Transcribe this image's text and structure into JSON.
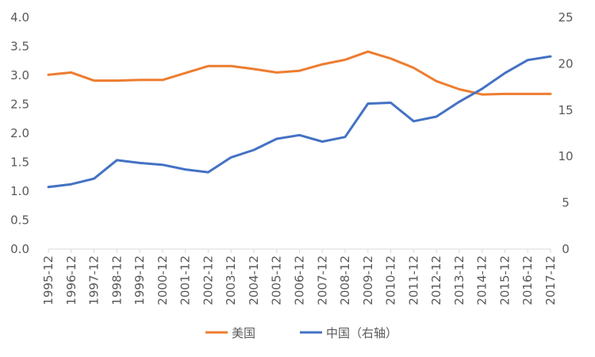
{
  "chart_data": {
    "type": "line",
    "categories": [
      "1995-12",
      "1996-12",
      "1997-12",
      "1998-12",
      "1999-12",
      "2000-12",
      "2001-12",
      "2002-12",
      "2003-12",
      "2004-12",
      "2005-12",
      "2006-12",
      "2007-12",
      "2008-12",
      "2009-12",
      "2010-12",
      "2011-12",
      "2012-12",
      "2013-12",
      "2014-12",
      "2015-12",
      "2016-12",
      "2017-12"
    ],
    "y_left": {
      "range": [
        0,
        4.0
      ],
      "ticks": [
        "0.0",
        "0.5",
        "1.0",
        "1.5",
        "2.0",
        "2.5",
        "3.0",
        "3.5",
        "4.0"
      ]
    },
    "y_right": {
      "range": [
        0,
        25
      ],
      "ticks": [
        "0",
        "5",
        "10",
        "15",
        "20",
        "25"
      ]
    },
    "grid": false,
    "legend_position": "bottom",
    "series": [
      {
        "name": "美国",
        "axis": "left",
        "color": "#ED7D31",
        "values": [
          3.01,
          3.05,
          2.91,
          2.91,
          2.92,
          2.92,
          3.04,
          3.16,
          3.16,
          3.11,
          3.05,
          3.08,
          3.19,
          3.27,
          3.41,
          3.29,
          3.13,
          2.9,
          2.76,
          2.67,
          2.68,
          2.68,
          2.68
        ]
      },
      {
        "name": "中国（右轴）",
        "axis": "right",
        "color": "#4472C4",
        "values": [
          6.7,
          7.0,
          7.6,
          9.6,
          9.3,
          9.1,
          8.6,
          8.3,
          9.9,
          10.7,
          11.9,
          12.3,
          11.6,
          12.1,
          15.7,
          15.8,
          13.8,
          14.3,
          15.9,
          17.3,
          19.0,
          20.4,
          20.8
        ]
      }
    ]
  }
}
